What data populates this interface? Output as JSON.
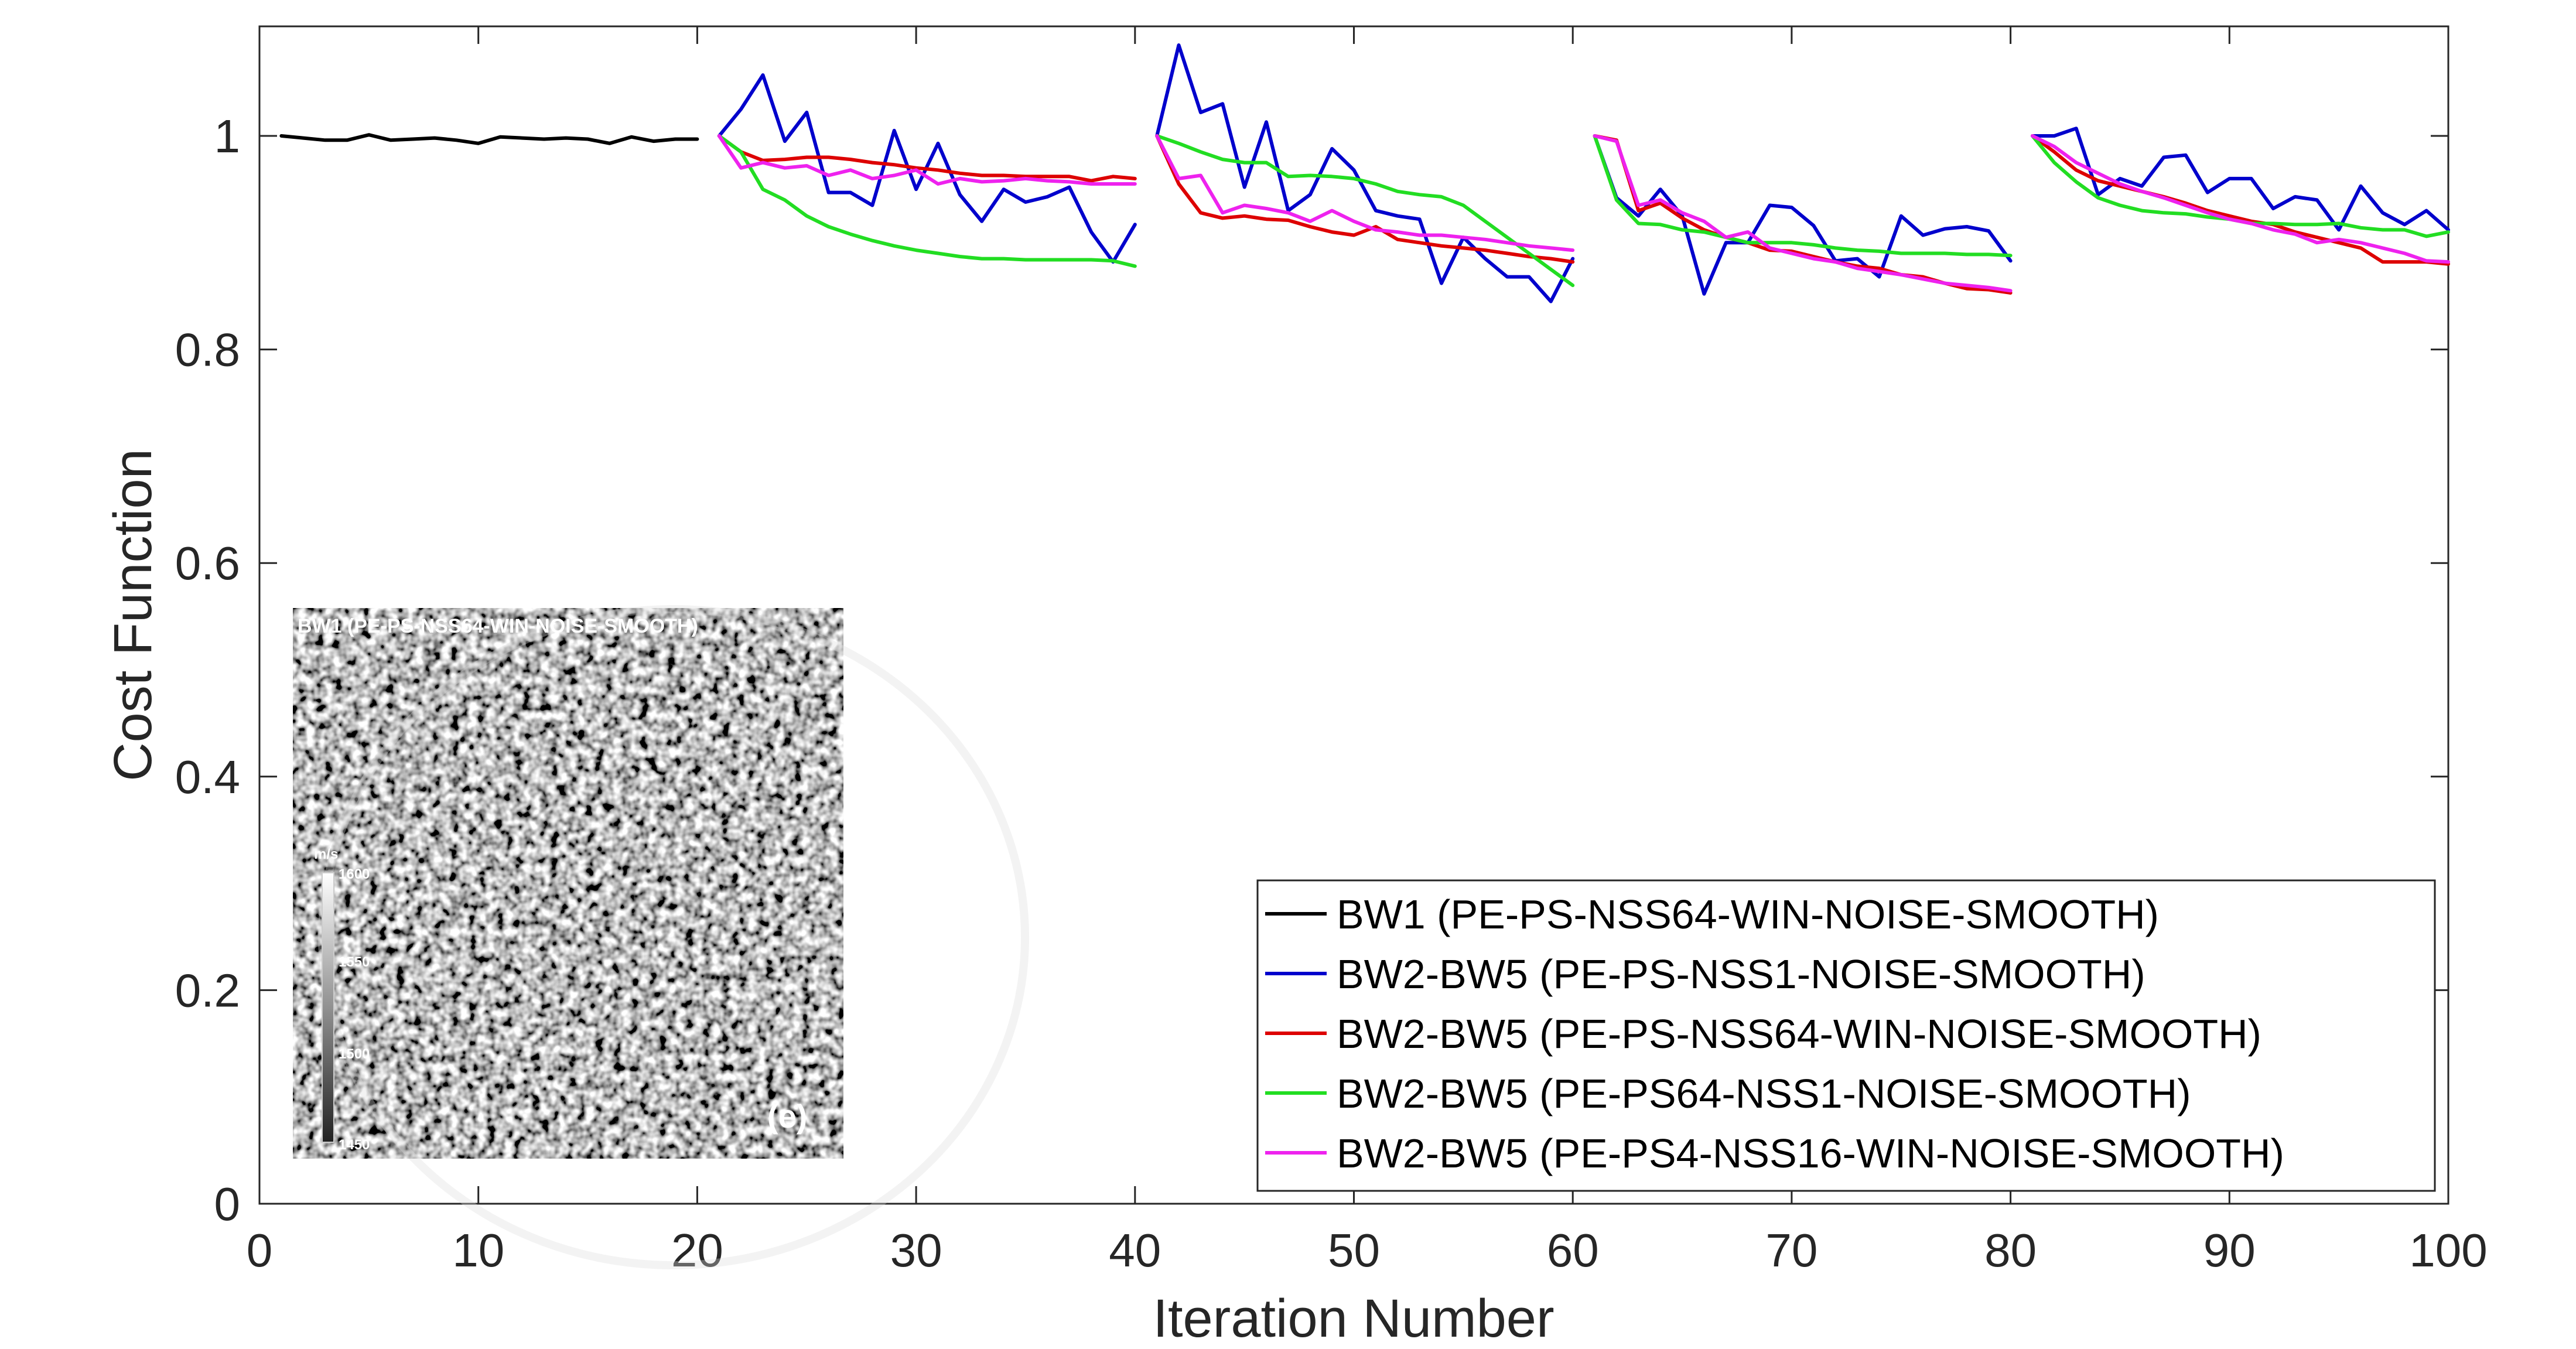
{
  "chart_data": {
    "type": "line",
    "xlabel": "Iteration Number",
    "ylabel": "Cost Function",
    "xlim": [
      0,
      100
    ],
    "ylim": [
      0,
      1.1
    ],
    "xticks": [
      0,
      10,
      20,
      30,
      40,
      50,
      60,
      70,
      80,
      90,
      100
    ],
    "yticks": [
      0,
      0.2,
      0.4,
      0.6,
      0.8,
      1
    ],
    "xtick_labels": [
      "0",
      "10",
      "20",
      "30",
      "40",
      "50",
      "60",
      "70",
      "80",
      "90",
      "100"
    ],
    "ytick_labels": [
      "0",
      "0.2",
      "0.4",
      "0.6",
      "0.8",
      "1"
    ],
    "grid": false,
    "legend_position": "bottom-right",
    "series": [
      {
        "name": "BW1 (PE-PS-NSS64-WIN-NOISE-SMOOTH)",
        "color": "#000000",
        "segments": [
          {
            "x": [
              1,
              2,
              3,
              4,
              5,
              6,
              7,
              8,
              9,
              10,
              11,
              12,
              13,
              14,
              15,
              16,
              17,
              18,
              19,
              20
            ],
            "y": [
              1.0,
              0.998,
              0.996,
              0.996,
              1.001,
              0.996,
              0.997,
              0.998,
              0.996,
              0.993,
              0.999,
              0.998,
              0.997,
              0.998,
              0.997,
              0.993,
              0.999,
              0.995,
              0.997,
              0.997
            ]
          }
        ]
      },
      {
        "name": "BW2-BW5 (PE-PS-NSS1-NOISE-SMOOTH)",
        "color": "#0000cc",
        "segments": [
          {
            "x": [
              21,
              22,
              23,
              24,
              25,
              26,
              27,
              28,
              29,
              30,
              31,
              32,
              33,
              34,
              35,
              36,
              37,
              38,
              39,
              40
            ],
            "y": [
              1.0,
              1.025,
              1.057,
              0.995,
              1.022,
              0.947,
              0.947,
              0.935,
              1.005,
              0.95,
              0.993,
              0.945,
              0.92,
              0.95,
              0.938,
              0.943,
              0.952,
              0.91,
              0.882,
              0.917
            ]
          },
          {
            "x": [
              41,
              42,
              43,
              44,
              45,
              46,
              47,
              48,
              49,
              50,
              51,
              52,
              53,
              54,
              55,
              56,
              57,
              58,
              59,
              60
            ],
            "y": [
              1.0,
              1.085,
              1.022,
              1.03,
              0.952,
              1.013,
              0.93,
              0.945,
              0.988,
              0.968,
              0.93,
              0.925,
              0.922,
              0.862,
              0.905,
              0.885,
              0.868,
              0.868,
              0.845,
              0.885
            ]
          },
          {
            "x": [
              61,
              62,
              63,
              64,
              65,
              66,
              67,
              68,
              69,
              70,
              71,
              72,
              73,
              74,
              75,
              76,
              77,
              78,
              79,
              80
            ],
            "y": [
              1.0,
              0.942,
              0.925,
              0.95,
              0.925,
              0.852,
              0.9,
              0.9,
              0.935,
              0.933,
              0.916,
              0.883,
              0.885,
              0.868,
              0.925,
              0.907,
              0.913,
              0.915,
              0.911,
              0.883
            ]
          },
          {
            "x": [
              81,
              82,
              83,
              84,
              85,
              86,
              87,
              88,
              89,
              90,
              91,
              92,
              93,
              94,
              95,
              96,
              97,
              98,
              99,
              100
            ],
            "y": [
              1.0,
              1.0,
              1.007,
              0.945,
              0.96,
              0.953,
              0.98,
              0.982,
              0.947,
              0.96,
              0.96,
              0.932,
              0.943,
              0.94,
              0.912,
              0.953,
              0.928,
              0.917,
              0.93,
              0.912
            ]
          }
        ]
      },
      {
        "name": "BW2-BW5 (PE-PS-NSS64-WIN-NOISE-SMOOTH)",
        "color": "#dd0000",
        "segments": [
          {
            "x": [
              21,
              22,
              23,
              24,
              25,
              26,
              27,
              28,
              29,
              30,
              31,
              32,
              33,
              34,
              35,
              36,
              37,
              38,
              39,
              40
            ],
            "y": [
              1.0,
              0.985,
              0.977,
              0.978,
              0.98,
              0.98,
              0.978,
              0.975,
              0.973,
              0.97,
              0.968,
              0.965,
              0.963,
              0.963,
              0.962,
              0.962,
              0.962,
              0.958,
              0.962,
              0.96
            ]
          },
          {
            "x": [
              41,
              42,
              43,
              44,
              45,
              46,
              47,
              48,
              49,
              50,
              51,
              52,
              53,
              54,
              55,
              56,
              57,
              58,
              59,
              60
            ],
            "y": [
              1.0,
              0.955,
              0.928,
              0.923,
              0.925,
              0.922,
              0.921,
              0.915,
              0.91,
              0.907,
              0.915,
              0.903,
              0.9,
              0.897,
              0.895,
              0.893,
              0.89,
              0.887,
              0.885,
              0.882
            ]
          },
          {
            "x": [
              61,
              62,
              63,
              64,
              65,
              66,
              67,
              68,
              69,
              70,
              71,
              72,
              73,
              74,
              75,
              76,
              77,
              78,
              79,
              80
            ],
            "y": [
              1.0,
              0.996,
              0.93,
              0.937,
              0.923,
              0.912,
              0.905,
              0.9,
              0.893,
              0.892,
              0.887,
              0.882,
              0.878,
              0.876,
              0.87,
              0.868,
              0.862,
              0.857,
              0.856,
              0.853
            ]
          },
          {
            "x": [
              81,
              82,
              83,
              84,
              85,
              86,
              87,
              88,
              89,
              90,
              91,
              92,
              93,
              94,
              95,
              96,
              97,
              98,
              99,
              100
            ],
            "y": [
              1.0,
              0.985,
              0.968,
              0.958,
              0.953,
              0.948,
              0.943,
              0.937,
              0.93,
              0.925,
              0.92,
              0.917,
              0.91,
              0.905,
              0.9,
              0.895,
              0.882,
              0.882,
              0.882,
              0.88
            ]
          }
        ]
      },
      {
        "name": "BW2-BW5 (PE-PS64-NSS1-NOISE-SMOOTH)",
        "color": "#22dd22",
        "segments": [
          {
            "x": [
              21,
              22,
              23,
              24,
              25,
              26,
              27,
              28,
              29,
              30,
              31,
              32,
              33,
              34,
              35,
              36,
              37,
              38,
              39,
              40
            ],
            "y": [
              1.0,
              0.985,
              0.95,
              0.94,
              0.925,
              0.915,
              0.908,
              0.902,
              0.897,
              0.893,
              0.89,
              0.887,
              0.885,
              0.885,
              0.884,
              0.884,
              0.884,
              0.884,
              0.883,
              0.878
            ]
          },
          {
            "x": [
              41,
              42,
              43,
              44,
              45,
              46,
              47,
              48,
              49,
              50,
              51,
              52,
              53,
              54,
              55,
              56,
              57,
              58,
              59,
              60
            ],
            "y": [
              1.0,
              0.993,
              0.985,
              0.978,
              0.975,
              0.975,
              0.962,
              0.963,
              0.962,
              0.96,
              0.955,
              0.948,
              0.945,
              0.943,
              0.935,
              0.92,
              0.905,
              0.89,
              0.875,
              0.86
            ]
          },
          {
            "x": [
              61,
              62,
              63,
              64,
              65,
              66,
              67,
              68,
              69,
              70,
              71,
              72,
              73,
              74,
              75,
              76,
              77,
              78,
              79,
              80
            ],
            "y": [
              1.0,
              0.94,
              0.918,
              0.917,
              0.912,
              0.91,
              0.905,
              0.9,
              0.9,
              0.9,
              0.898,
              0.895,
              0.893,
              0.892,
              0.89,
              0.89,
              0.89,
              0.889,
              0.889,
              0.888
            ]
          },
          {
            "x": [
              81,
              82,
              83,
              84,
              85,
              86,
              87,
              88,
              89,
              90,
              91,
              92,
              93,
              94,
              95,
              96,
              97,
              98,
              99,
              100
            ],
            "y": [
              1.0,
              0.975,
              0.957,
              0.942,
              0.935,
              0.93,
              0.928,
              0.927,
              0.924,
              0.922,
              0.918,
              0.918,
              0.917,
              0.917,
              0.918,
              0.914,
              0.912,
              0.912,
              0.906,
              0.91
            ]
          }
        ]
      },
      {
        "name": "BW2-BW5 (PE-PS4-NSS16-WIN-NOISE-SMOOTH)",
        "color": "#ee22ee",
        "segments": [
          {
            "x": [
              21,
              22,
              23,
              24,
              25,
              26,
              27,
              28,
              29,
              30,
              31,
              32,
              33,
              34,
              35,
              36,
              37,
              38,
              39,
              40
            ],
            "y": [
              1.0,
              0.97,
              0.975,
              0.97,
              0.972,
              0.963,
              0.968,
              0.96,
              0.963,
              0.968,
              0.955,
              0.96,
              0.957,
              0.958,
              0.96,
              0.958,
              0.957,
              0.955,
              0.955,
              0.955
            ]
          },
          {
            "x": [
              41,
              42,
              43,
              44,
              45,
              46,
              47,
              48,
              49,
              50,
              51,
              52,
              53,
              54,
              55,
              56,
              57,
              58,
              59,
              60
            ],
            "y": [
              1.0,
              0.96,
              0.963,
              0.928,
              0.935,
              0.932,
              0.928,
              0.92,
              0.93,
              0.92,
              0.912,
              0.91,
              0.907,
              0.907,
              0.905,
              0.903,
              0.9,
              0.897,
              0.895,
              0.893
            ]
          },
          {
            "x": [
              61,
              62,
              63,
              64,
              65,
              66,
              67,
              68,
              69,
              70,
              71,
              72,
              73,
              74,
              75,
              76,
              77,
              78,
              79,
              80
            ],
            "y": [
              1.0,
              0.995,
              0.935,
              0.94,
              0.928,
              0.92,
              0.905,
              0.91,
              0.895,
              0.89,
              0.885,
              0.882,
              0.876,
              0.873,
              0.87,
              0.866,
              0.862,
              0.86,
              0.858,
              0.855
            ]
          },
          {
            "x": [
              81,
              82,
              83,
              84,
              85,
              86,
              87,
              88,
              89,
              90,
              91,
              92,
              93,
              94,
              95,
              96,
              97,
              98,
              99,
              100
            ],
            "y": [
              1.0,
              0.99,
              0.975,
              0.965,
              0.955,
              0.948,
              0.942,
              0.935,
              0.928,
              0.922,
              0.918,
              0.912,
              0.908,
              0.9,
              0.903,
              0.9,
              0.895,
              0.89,
              0.883,
              0.882
            ]
          }
        ]
      }
    ],
    "inset": {
      "title": "BW1 (PE-PS-NSS64-WIN-NOISE-SMOOTH)",
      "colorbar_unit": "m/s",
      "colorbar_ticks": [
        "1600",
        "1550",
        "1500",
        "1450"
      ],
      "panel_label": "(e)"
    }
  }
}
